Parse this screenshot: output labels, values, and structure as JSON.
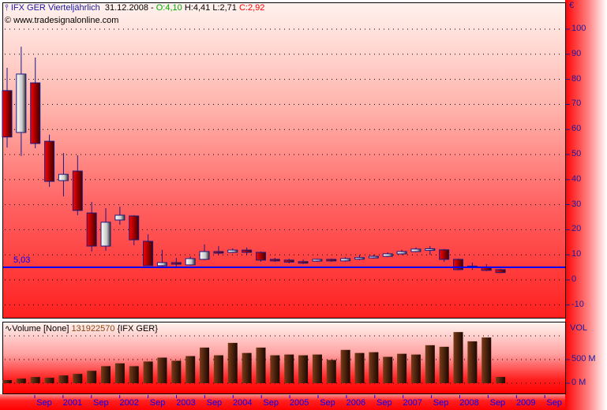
{
  "header": {
    "symbol": "IFX GER",
    "period": "Vierteljährlich",
    "date": "31.12.2008",
    "sep": "-",
    "open": "O:4,10",
    "high": "H:4,41",
    "low": "L:2,71",
    "close": "C:2,92",
    "copyright": "© www.tradesignalonline.com"
  },
  "colors": {
    "up_body": "#ffffff",
    "down_body": "#cc0000",
    "outline": "#1a1a80",
    "hline": "#0000ff",
    "open_text": "#00aa00",
    "close_text": "#ff0000",
    "vol_bar": "#5a2a10"
  },
  "price_axis": {
    "currency": "€",
    "ticks": [
      "100",
      "90",
      "80",
      "70",
      "60",
      "50",
      "40",
      "30",
      "20",
      "10",
      "0",
      "-10"
    ],
    "values": [
      100,
      90,
      80,
      70,
      60,
      50,
      40,
      30,
      20,
      10,
      0,
      -10
    ]
  },
  "hline": {
    "value": 5.03,
    "label": "5,03"
  },
  "candles": [
    {
      "o": 75.5,
      "h": 84.6,
      "l": 52.8,
      "c": 57
    },
    {
      "o": 58.8,
      "h": 93,
      "l": 49.4,
      "c": 82.1
    },
    {
      "o": 78.6,
      "h": 88.7,
      "l": 52.5,
      "c": 54.4
    },
    {
      "o": 55.3,
      "h": 57.9,
      "l": 37.1,
      "c": 39.3
    },
    {
      "o": 39.6,
      "h": 50.6,
      "l": 33.3,
      "c": 42.1
    },
    {
      "o": 43.4,
      "h": 49.7,
      "l": 25.8,
      "c": 27.7
    },
    {
      "o": 26.7,
      "h": 31.1,
      "l": 11.3,
      "c": 13.5
    },
    {
      "o": 13.5,
      "h": 28.6,
      "l": 11.6,
      "c": 23
    },
    {
      "o": 23.9,
      "h": 29.2,
      "l": 22,
      "c": 25.8
    },
    {
      "o": 25.5,
      "h": 25.8,
      "l": 13.8,
      "c": 16
    },
    {
      "o": 15.4,
      "h": 18.2,
      "l": 5.5,
      "c": 5.7
    },
    {
      "o": 5.7,
      "h": 12,
      "l": 5.3,
      "c": 6.9
    },
    {
      "o": 6.9,
      "h": 8.8,
      "l": 5.3,
      "c": 6.3
    },
    {
      "o": 6,
      "h": 9.4,
      "l": 5.7,
      "c": 8.5
    },
    {
      "o": 8.2,
      "h": 14.2,
      "l": 7.9,
      "c": 11.3
    },
    {
      "o": 11.3,
      "h": 13.5,
      "l": 10,
      "c": 10.9
    },
    {
      "o": 11,
      "h": 12.6,
      "l": 10.7,
      "c": 11.9
    },
    {
      "o": 11.9,
      "h": 12.9,
      "l": 10,
      "c": 11
    },
    {
      "o": 11,
      "h": 11.3,
      "l": 7.2,
      "c": 7.9
    },
    {
      "o": 8.2,
      "h": 8.8,
      "l": 7.2,
      "c": 7.8
    },
    {
      "o": 7.9,
      "h": 8.5,
      "l": 6.6,
      "c": 7.1
    },
    {
      "o": 7.3,
      "h": 8.2,
      "l": 6.3,
      "c": 7.1
    },
    {
      "o": 7.5,
      "h": 8.5,
      "l": 7.2,
      "c": 8.2
    },
    {
      "o": 8.2,
      "h": 8.5,
      "l": 7.2,
      "c": 7.6
    },
    {
      "o": 7.6,
      "h": 9.1,
      "l": 7.2,
      "c": 8.5
    },
    {
      "o": 8.7,
      "h": 10,
      "l": 7.9,
      "c": 8.9
    },
    {
      "o": 8.8,
      "h": 10.1,
      "l": 8.5,
      "c": 9.4
    },
    {
      "o": 9.4,
      "h": 11,
      "l": 9.1,
      "c": 10.4
    },
    {
      "o": 10.4,
      "h": 12,
      "l": 10,
      "c": 11.3
    },
    {
      "o": 11.3,
      "h": 13,
      "l": 11,
      "c": 12.3
    },
    {
      "o": 12.2,
      "h": 13.5,
      "l": 10,
      "c": 12.4
    },
    {
      "o": 12,
      "h": 12.3,
      "l": 7.2,
      "c": 8.2
    },
    {
      "o": 8.2,
      "h": 8.5,
      "l": 3.8,
      "c": 4.1
    },
    {
      "o": 4.9,
      "h": 6.9,
      "l": 4.1,
      "c": 5.5
    },
    {
      "o": 5,
      "h": 6.3,
      "l": 3.5,
      "c": 3.8
    },
    {
      "o": 4.1,
      "h": 4.41,
      "l": 2.71,
      "c": 2.92
    }
  ],
  "volume": {
    "title": "Volume [None]",
    "last": "131922570",
    "symbol": "{IFX GER}",
    "axis_title": "VOL",
    "ticks": [
      "500 M",
      "0 M"
    ],
    "tick_values": [
      500,
      0
    ],
    "values_m": [
      66,
      98,
      131,
      115,
      164,
      197,
      262,
      360,
      420,
      360,
      459,
      541,
      475,
      573,
      753,
      590,
      852,
      639,
      753,
      590,
      606,
      590,
      606,
      491,
      704,
      639,
      655,
      557,
      622,
      606,
      803,
      770,
      1081,
      885,
      966,
      132
    ]
  },
  "x_axis": {
    "labels": [
      "Sep",
      "2001",
      "Sep",
      "2002",
      "Sep",
      "2003",
      "Sep",
      "2004",
      "Sep",
      "2005",
      "Sep",
      "2006",
      "Sep",
      "2007",
      "Sep",
      "2008",
      "Sep",
      "2009",
      "Sep"
    ]
  }
}
